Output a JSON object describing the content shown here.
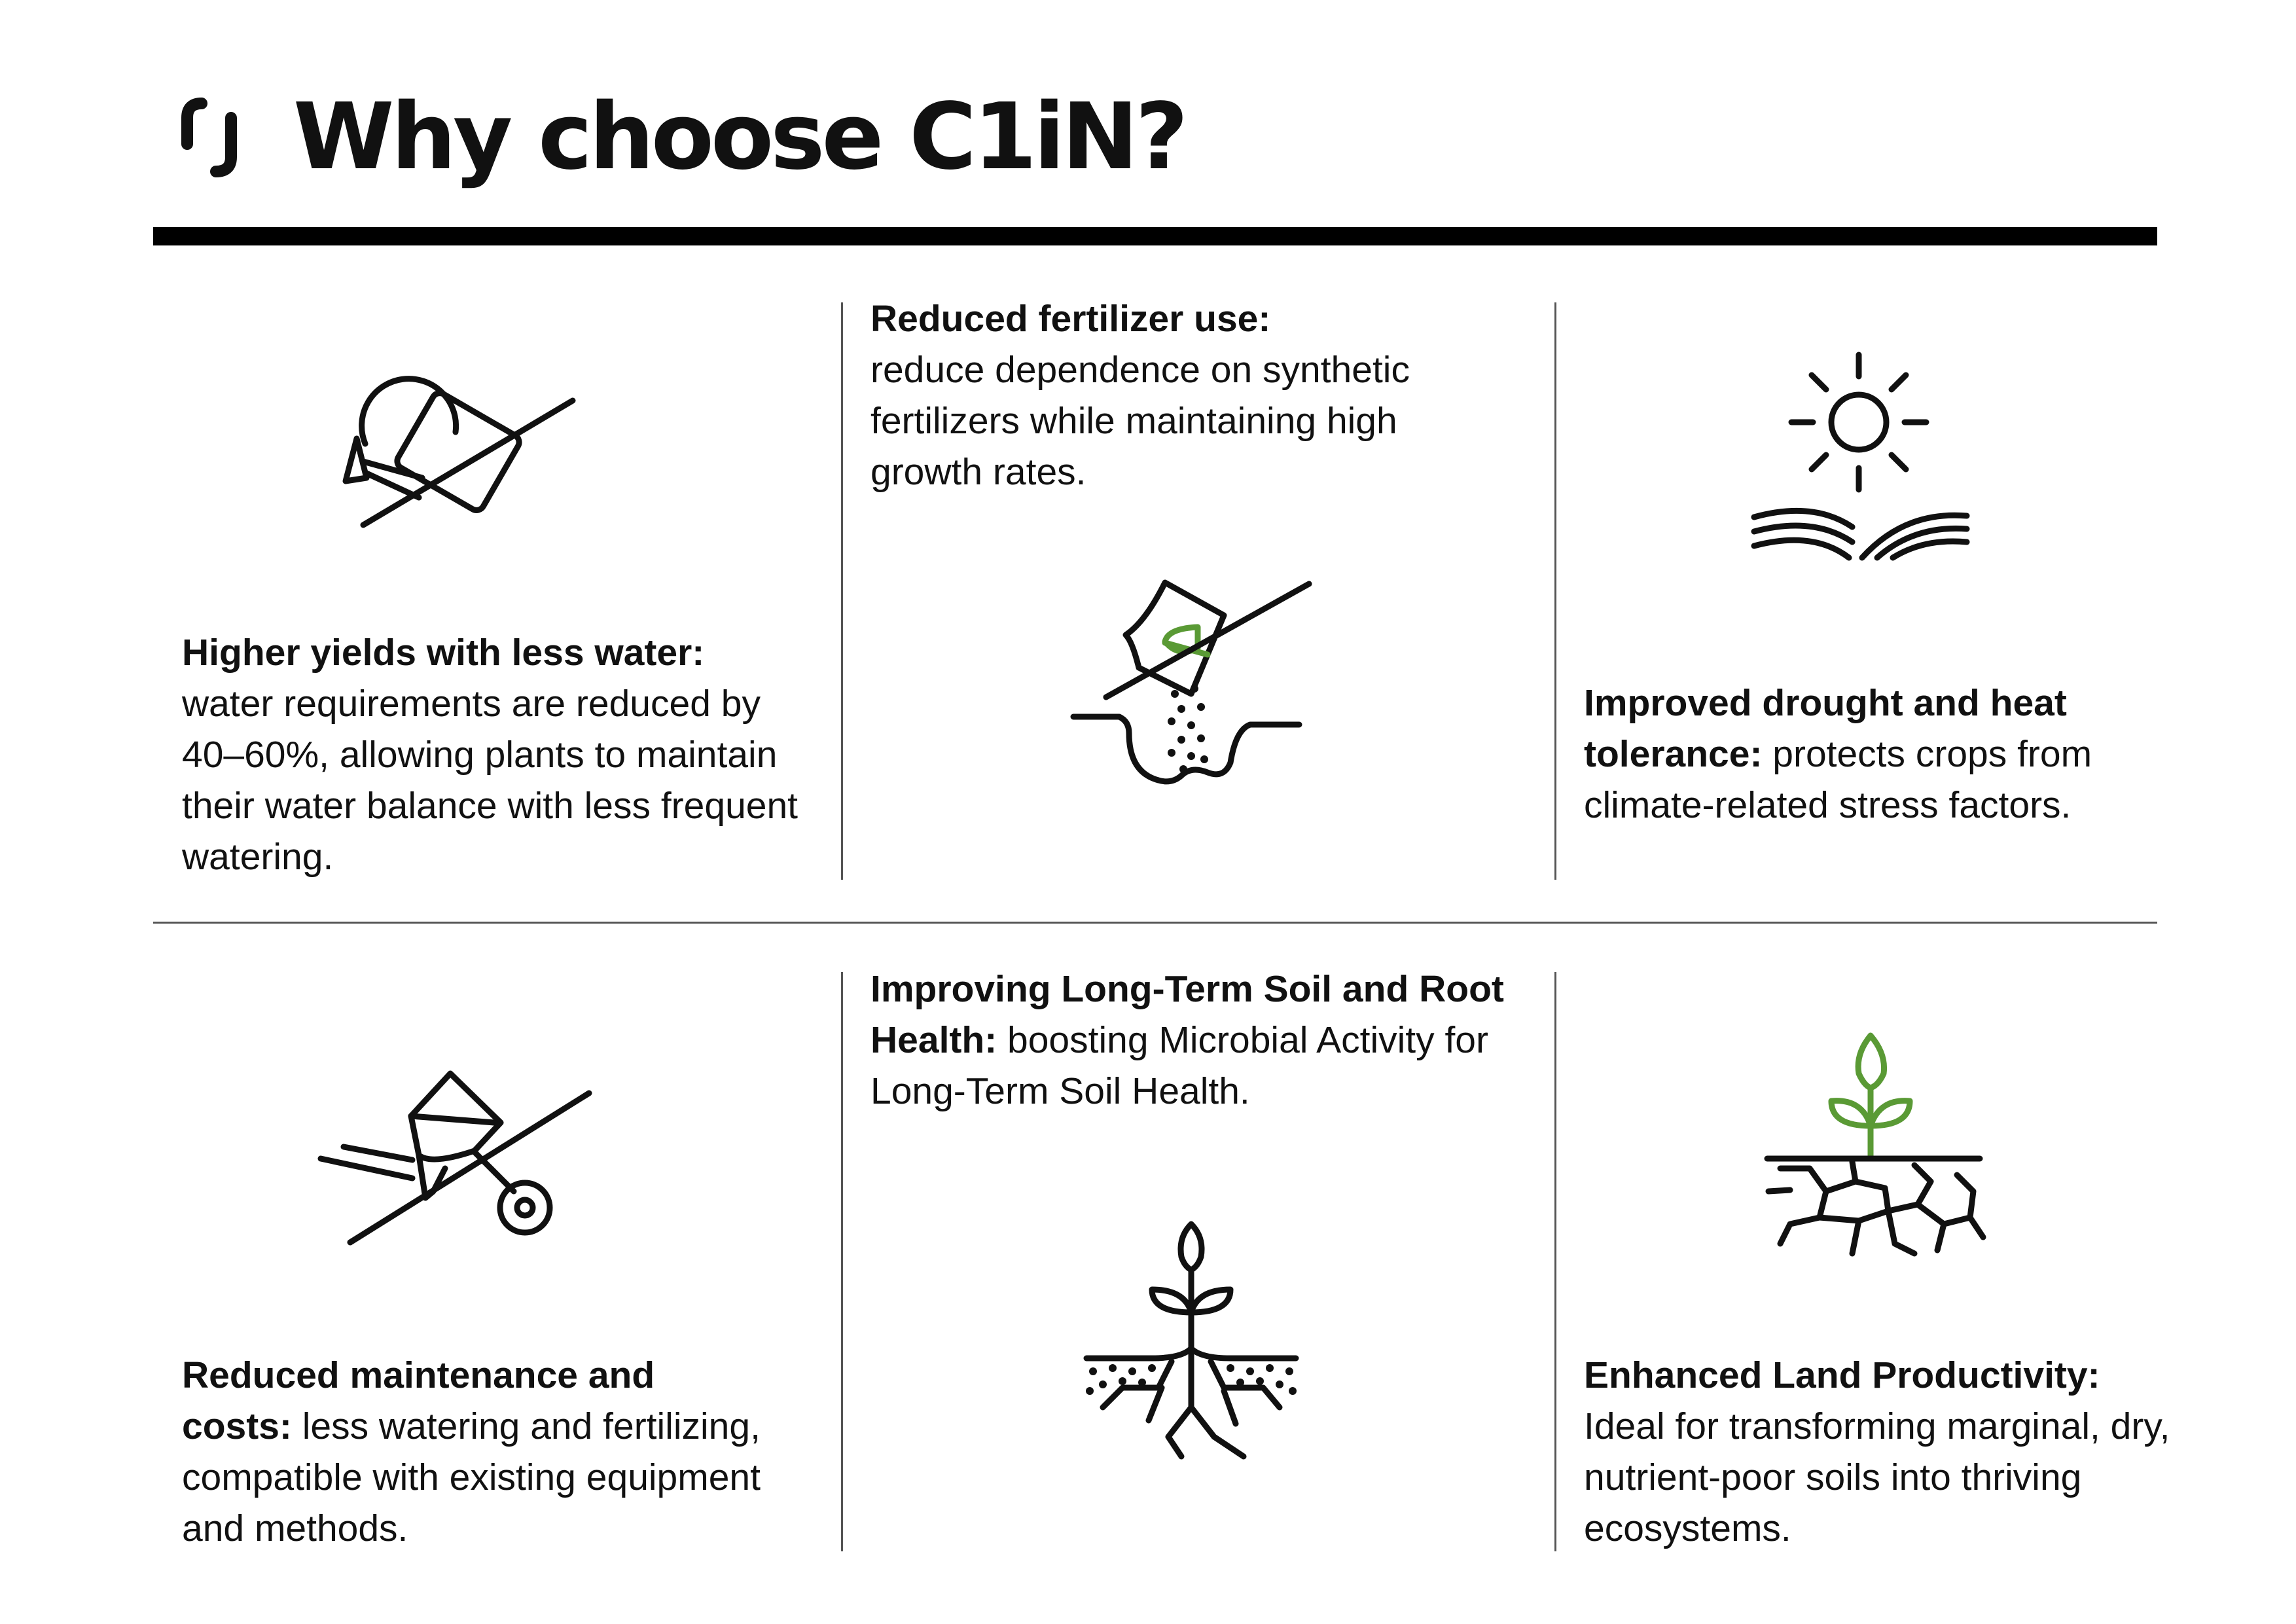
{
  "header": {
    "title": "Why choose C1iN?"
  },
  "colors": {
    "text": "#111111",
    "accent_green": "#5a9a35",
    "rule": "#000000",
    "divider": "#555555"
  },
  "features": [
    {
      "heading": "Higher yields with less water:",
      "body": "water requirements are reduced by 40–60%, allowing plants to maintain their water balance with less frequent watering.",
      "icon": "crossed-watering-can-icon"
    },
    {
      "heading": "Reduced fertilizer use:",
      "body": "reduce dependence on synthetic fertilizers while maintaining high growth rates.",
      "icon": "crossed-fertilizer-bag-icon"
    },
    {
      "heading": "Improved drought and heat tolerance:",
      "body": "protects crops from climate-related stress factors.",
      "icon": "sun-over-field-icon"
    },
    {
      "heading": "Reduced maintenance and costs:",
      "body": "less watering and fertilizing, compatible with existing equipment and methods.",
      "icon": "crossed-wheelbarrow-icon"
    },
    {
      "heading": "Improving Long-Term Soil and Root Health:",
      "body": "boosting Microbial Activity for Long-Term Soil Health.",
      "icon": "plant-roots-in-soil-icon"
    },
    {
      "heading": "Enhanced Land Productivity:",
      "body": "Ideal for transforming marginal, dry, nutrient-poor soils into thriving ecosystems.",
      "icon": "sprout-on-cracked-soil-icon"
    }
  ]
}
